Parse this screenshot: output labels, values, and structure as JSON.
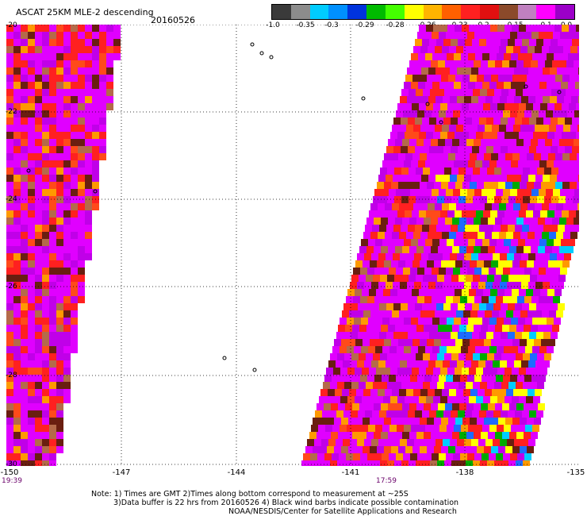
{
  "title": "ASCAT 25KM MLE-2 descending",
  "date": "20160526",
  "colorbar": {
    "colors": [
      "#3a3a3a",
      "#8c8c8c",
      "#00ccff",
      "#0090ff",
      "#0033dd",
      "#00bb00",
      "#44ff00",
      "#ffff00",
      "#ffb400",
      "#ff6000",
      "#ff2020",
      "#e01010",
      "#8b4a2a",
      "#c080c0",
      "#ff00ff",
      "#9b00c8"
    ],
    "labels": [
      "-1.0",
      "-0.35",
      "-0.3",
      "-0.29",
      "-0.28",
      "-0.26",
      "-0.23",
      "-0.2",
      "-0.15",
      "-0.1",
      "0.0"
    ]
  },
  "map": {
    "lat_labels": [
      "-20",
      "-22",
      "-24",
      "-26",
      "-28",
      "-30"
    ],
    "lon_labels": [
      "-150",
      "-147",
      "-144",
      "-141",
      "-138",
      "-135"
    ],
    "pass_times": [
      "19:39",
      "17:59"
    ]
  },
  "notes": [
    "Note: 1) Times are GMT 2)Times along bottom correspond to measurement at ~25S",
    "3)Data buffer is 22 hrs from 20160526 4) Black wind barbs indicate possible contamination",
    "NOAA/NESDIS/Center for Satellite Applications and Research"
  ]
}
